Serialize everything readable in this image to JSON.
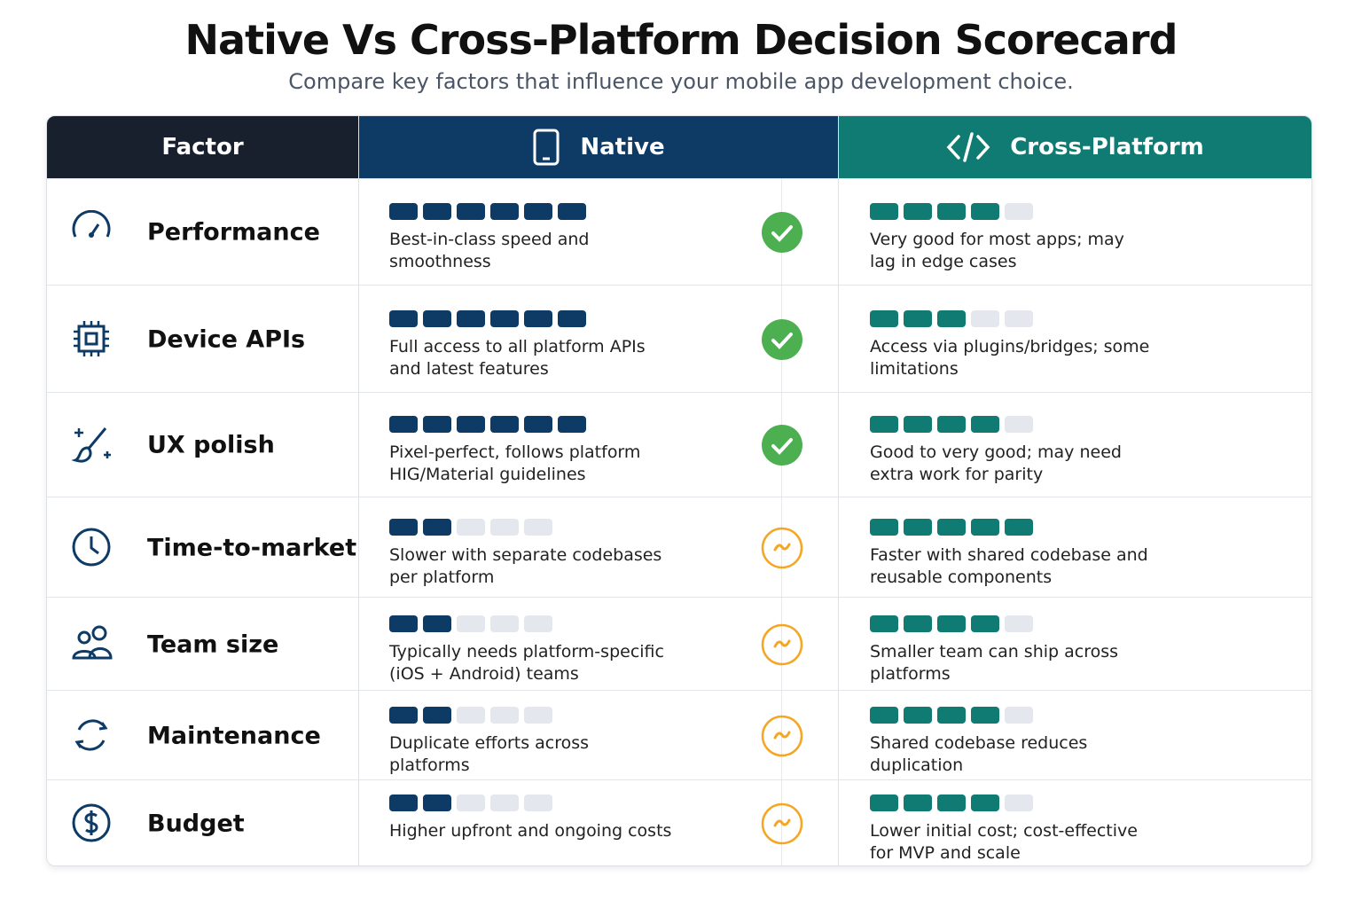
{
  "header": {
    "title": "Native Vs Cross-Platform Decision Scorecard",
    "subtitle": "Compare key factors that influence your mobile app development choice."
  },
  "table": {
    "columns": [
      "Factor",
      "Native",
      "Cross-Platform"
    ],
    "native_color": "#0d3b66",
    "cross_color": "#0f7b73",
    "empty_color": "#e4e8ee",
    "rows": [
      {
        "factor": "Performance",
        "native": {
          "score": 6,
          "max": 6,
          "text": "Best-in-class speed and smoothness",
          "verdict": "check"
        },
        "cross": {
          "score": 4,
          "max": 5,
          "text": "Very good for most apps; may lag in edge cases"
        }
      },
      {
        "factor": "Device APIs",
        "native": {
          "score": 6,
          "max": 6,
          "text": "Full access to all platform APIs and latest features",
          "verdict": "check"
        },
        "cross": {
          "score": 3,
          "max": 5,
          "text": "Access via plugins/bridges; some limitations"
        }
      },
      {
        "factor": "UX polish",
        "native": {
          "score": 6,
          "max": 6,
          "text": "Pixel-perfect, follows platform HIG/Material guidelines",
          "verdict": "check"
        },
        "cross": {
          "score": 4,
          "max": 5,
          "text": "Good to very good; may need extra work for parity"
        }
      },
      {
        "factor": "Time-to-market",
        "native": {
          "score": 2,
          "max": 5,
          "text": "Slower with separate codebases per platform",
          "verdict": "tilde"
        },
        "cross": {
          "score": 5,
          "max": 5,
          "text": "Faster with shared codebase and reusable components"
        }
      },
      {
        "factor": "Team size",
        "native": {
          "score": 2,
          "max": 5,
          "text": "Typically needs platform-specific (iOS + Android) teams",
          "verdict": "tilde"
        },
        "cross": {
          "score": 4,
          "max": 5,
          "text": "Smaller team can ship across platforms"
        }
      },
      {
        "factor": "Maintenance",
        "native": {
          "score": 2,
          "max": 5,
          "text": "Duplicate efforts across platforms",
          "verdict": "tilde"
        },
        "cross": {
          "score": 4,
          "max": 5,
          "text": "Shared codebase reduces duplication"
        }
      },
      {
        "factor": "Budget",
        "native": {
          "score": 2,
          "max": 5,
          "text": "Higher upfront and ongoing costs",
          "verdict": "tilde"
        },
        "cross": {
          "score": 4,
          "max": 5,
          "text": "Lower initial cost; cost-effective for MVP and scale"
        }
      }
    ]
  }
}
